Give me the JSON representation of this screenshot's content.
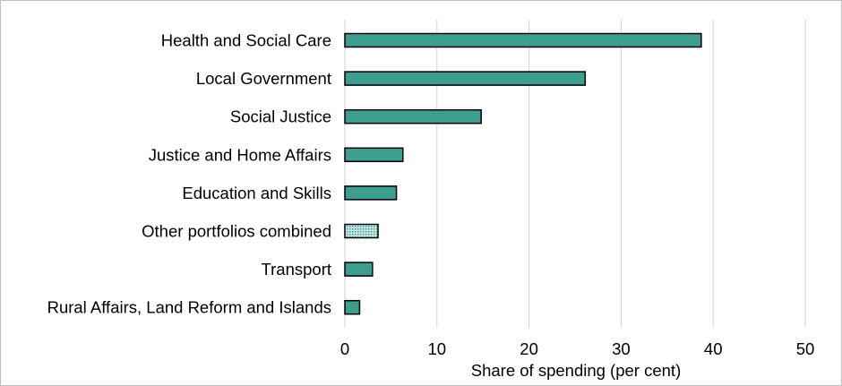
{
  "chart_data": {
    "type": "bar",
    "orientation": "horizontal",
    "categories": [
      "Health and Social Care",
      "Local Government",
      "Social Justice",
      "Justice and Home Affairs",
      "Education and Skills",
      "Other portfolios combined",
      "Transport",
      "Rural Affairs, Land Reform and Islands"
    ],
    "values": [
      38.7,
      26.1,
      14.8,
      6.3,
      5.6,
      3.6,
      3.0,
      1.6
    ],
    "patterned_categories": [
      "Other portfolios combined"
    ],
    "title": "",
    "xlabel": "Share of spending (per cent)",
    "ylabel": "",
    "xlim": [
      0,
      50
    ],
    "xticks": [
      0,
      10,
      20,
      30,
      40,
      50
    ],
    "grid": "vertical",
    "colors": {
      "bar_fill": "#3d9e8f",
      "bar_stroke": "#000000",
      "grid": "#d9d9d9",
      "pattern_base": "#c9e6e2",
      "pattern_dot": "#3d9e8f"
    }
  }
}
